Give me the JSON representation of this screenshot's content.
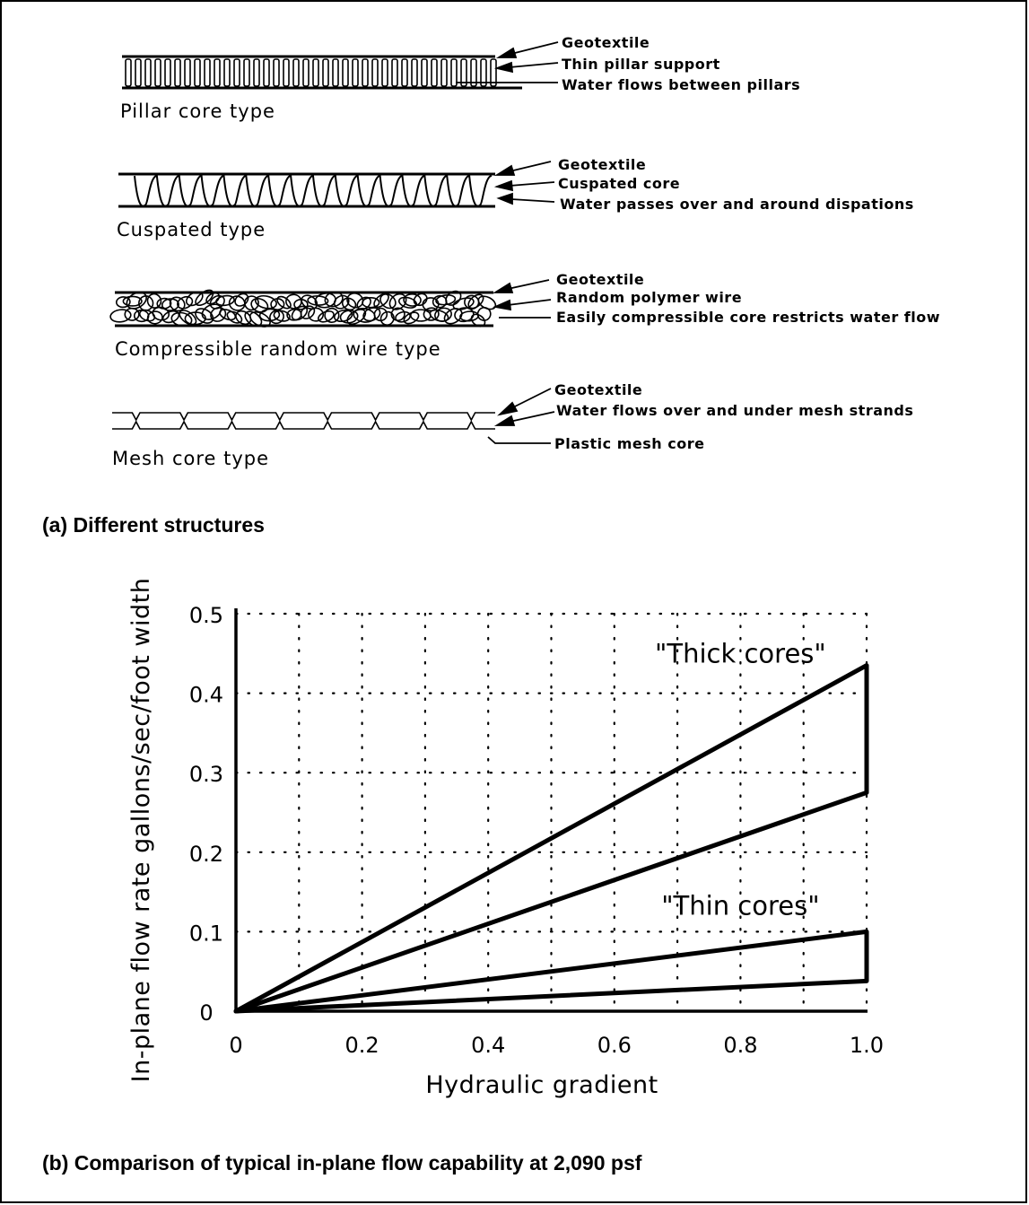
{
  "structures": {
    "pillar": {
      "name": "Pillar core type",
      "callouts": [
        "Geotextile",
        "Thin pillar support",
        "Water flows between pillars"
      ]
    },
    "cuspated": {
      "name": "Cuspated type",
      "callouts": [
        "Geotextile",
        "Cuspated core",
        "Water passes over and around dispations"
      ]
    },
    "wire": {
      "name": "Compressible random wire type",
      "callouts": [
        "Geotextile",
        "Random polymer wire",
        "Easily compressible core restricts water flow"
      ]
    },
    "mesh": {
      "name": "Mesh core type",
      "callouts": [
        "Geotextile",
        "Water flows over and under mesh strands",
        "Plastic mesh core"
      ]
    }
  },
  "captions": {
    "a": "(a) Different structures",
    "b": "(b) Comparison of typical in-plane flow capability at 2,090 psf"
  },
  "chart_data": {
    "type": "line",
    "xlabel": "Hydraulic gradient",
    "ylabel": "In-plane flow rate gallons/sec/foot width",
    "xlim": [
      0,
      1.0
    ],
    "ylim": [
      0,
      0.5
    ],
    "xticks": [
      "0",
      "0.2",
      "0.4",
      "0.6",
      "0.8",
      "1.0"
    ],
    "yticks": [
      "0",
      "0.1",
      "0.2",
      "0.3",
      "0.4",
      "0.5"
    ],
    "grid": true,
    "series": [
      {
        "x": [
          0,
          1.0
        ],
        "y": [
          0,
          0.435
        ]
      },
      {
        "x": [
          0,
          1.0
        ],
        "y": [
          0,
          0.275
        ]
      },
      {
        "x": [
          0,
          1.0
        ],
        "y": [
          0,
          0.1
        ]
      },
      {
        "x": [
          0,
          1.0
        ],
        "y": [
          0,
          0.038
        ]
      }
    ],
    "annotations": [
      {
        "text": "\"Thick cores\"",
        "x": 0.8,
        "y": 0.445
      },
      {
        "text": "\"Thin cores\"",
        "x": 0.8,
        "y": 0.128
      }
    ]
  }
}
